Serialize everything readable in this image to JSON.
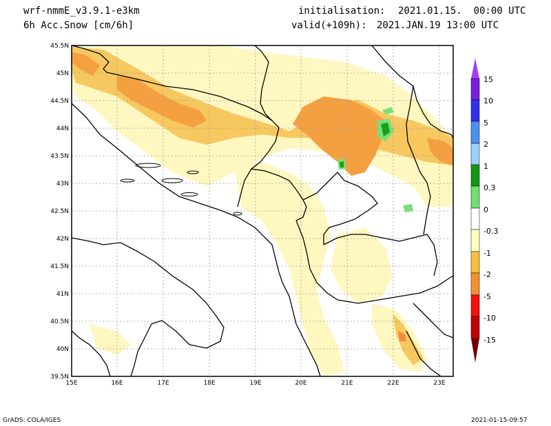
{
  "header": {
    "model": "wrf-nmmE_v3.9.1-e3km",
    "variable": "6h Acc.Snow [cm/6h]",
    "init_label": "initialisation:",
    "init_value": "2021.01.15.  00:00 UTC",
    "valid_label": "valid(+109h):",
    "valid_value": "2021.JAN.19 13:00 UTC"
  },
  "footer": {
    "credit": "GrADS: COLA/IGES",
    "timestamp": "2021-01-15-09:57"
  },
  "map": {
    "lat_labels": [
      "45.5N",
      "45N",
      "44.5N",
      "44N",
      "43.5N",
      "43N",
      "42.5N",
      "42N",
      "41.5N",
      "41N",
      "40.5N",
      "40N",
      "39.5N"
    ],
    "lon_labels": [
      "15E",
      "16E",
      "17E",
      "18E",
      "19E",
      "20E",
      "21E",
      "22E",
      "23E"
    ]
  },
  "colorbar": {
    "labels": [
      "15",
      "10",
      "5",
      "2",
      "1",
      "0.3",
      "0",
      "-0.3",
      "-1",
      "-2",
      "-5",
      "-10",
      "-15"
    ],
    "colors": [
      "#7a1fe0",
      "#3030f0",
      "#4a90f0",
      "#9cd0f8",
      "#129812",
      "#70e070",
      "#ffffff",
      "#ffffc0",
      "#f5c040",
      "#f59030",
      "#f51010",
      "#c00000",
      "#8a0000"
    ],
    "top_arrow_color": "#a040f0",
    "bottom_arrow_color": "#700000"
  },
  "colors": {
    "light_yellow": "#fff7c0",
    "yellow": "#f7c860",
    "orange": "#f5a040",
    "dark_orange": "#f08c3c",
    "light_green": "#78e078",
    "green": "#18a018"
  }
}
